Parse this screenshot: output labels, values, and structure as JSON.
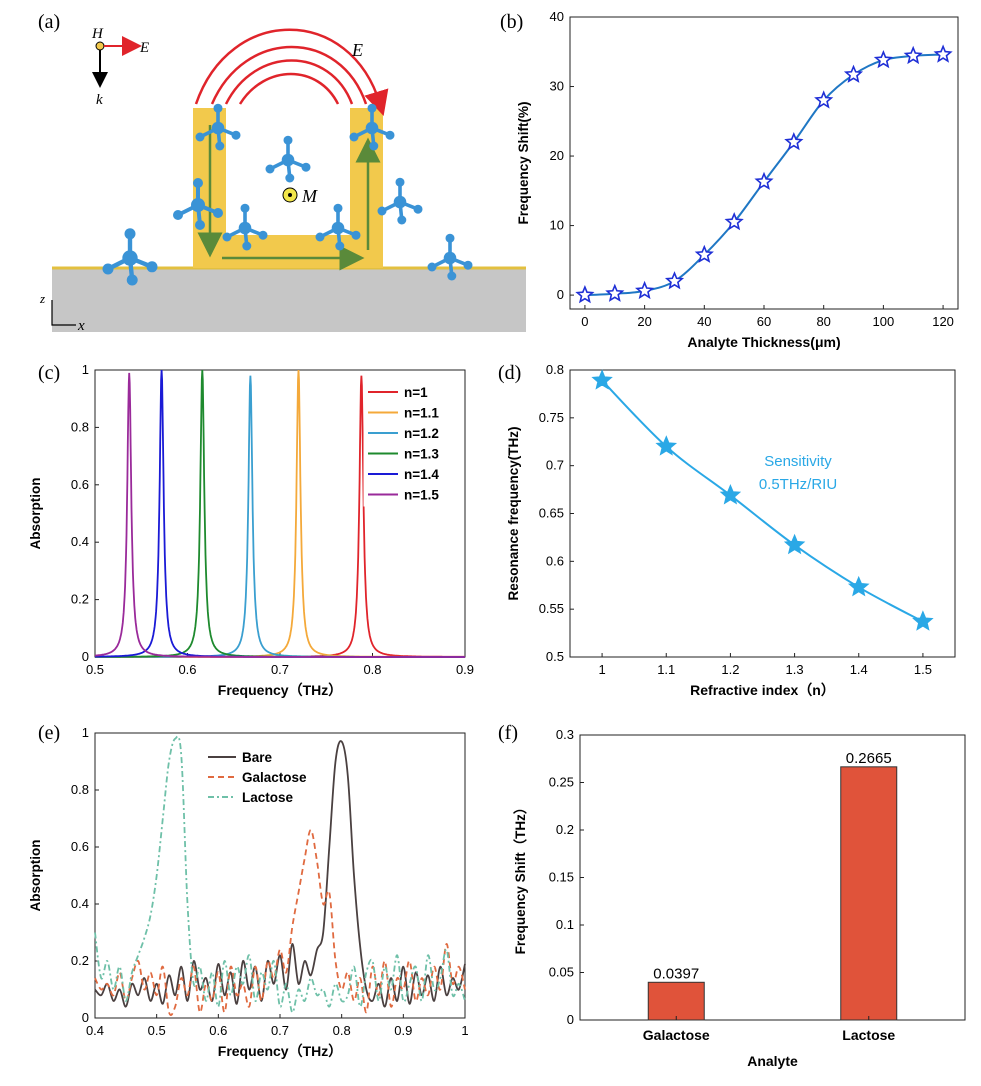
{
  "panel_labels": {
    "a": "(a)",
    "b": "(b)",
    "c": "(c)",
    "d": "(d)",
    "e": "(e)",
    "f": "(f)"
  },
  "schematic": {
    "H": "H",
    "E_axis": "E",
    "k": "k",
    "E_field": "E",
    "M": "M",
    "z": "z",
    "x": "x"
  },
  "colors": {
    "gold": "#f2c94c",
    "substrate": "#c6c6c6",
    "molecule": "#3a93d6",
    "arrow_red": "#e0242b",
    "arrow_green": "#5a8a3a"
  },
  "chart_data": [
    {
      "id": "b",
      "type": "line",
      "xlabel": "Analyte Thickness(μm)",
      "ylabel": "Frequency Shift(%)",
      "xlim": [
        -5,
        125
      ],
      "ylim": [
        -2,
        40
      ],
      "xticks": [
        0,
        20,
        40,
        60,
        80,
        100,
        120
      ],
      "yticks": [
        0,
        10,
        20,
        30,
        40
      ],
      "series": [
        {
          "x": [
            0,
            10,
            20,
            30,
            40,
            50,
            60,
            70,
            80,
            90,
            100,
            110,
            120
          ],
          "y": [
            0,
            0.2,
            0.6,
            2,
            5.8,
            10.5,
            16.3,
            22,
            28,
            31.7,
            33.8,
            34.4,
            34.6
          ],
          "color": "#1f77c4",
          "marker": "star",
          "marker_color": "#1f2fd6"
        }
      ]
    },
    {
      "id": "c",
      "type": "line",
      "xlabel": "Frequency（THz）",
      "ylabel": "Absorption",
      "xlim": [
        0.5,
        0.9
      ],
      "ylim": [
        0,
        1
      ],
      "xticks": [
        0.5,
        0.6,
        0.7,
        0.8,
        0.9
      ],
      "yticks": [
        0,
        0.2,
        0.4,
        0.6,
        0.8,
        1
      ],
      "legend": "top-right",
      "series": [
        {
          "name": "n=1",
          "color": "#e0242b",
          "peak": 0.788,
          "height": 0.98
        },
        {
          "name": "n=1.1",
          "color": "#f4a93a",
          "peak": 0.72,
          "height": 1.0
        },
        {
          "name": "n=1.2",
          "color": "#3a9fd0",
          "peak": 0.668,
          "height": 0.98
        },
        {
          "name": "n=1.3",
          "color": "#1e8a2e",
          "peak": 0.616,
          "height": 1.0
        },
        {
          "name": "n=1.4",
          "color": "#1a1ad6",
          "peak": 0.572,
          "height": 1.0
        },
        {
          "name": "n=1.5",
          "color": "#9a2a9a",
          "peak": 0.537,
          "height": 0.99
        }
      ]
    },
    {
      "id": "d",
      "type": "line",
      "xlabel": "Refractive index（n）",
      "ylabel": "Resonance frequency(THz)",
      "xlim": [
        0.95,
        1.55
      ],
      "ylim": [
        0.5,
        0.8
      ],
      "xticks": [
        1,
        1.1,
        1.2,
        1.3,
        1.4,
        1.5
      ],
      "yticks": [
        0.5,
        0.55,
        0.6,
        0.65,
        0.7,
        0.75,
        0.8
      ],
      "annotation": [
        "Sensitivity",
        "0.5THz/RIU"
      ],
      "series": [
        {
          "x": [
            1,
            1.1,
            1.2,
            1.3,
            1.4,
            1.5
          ],
          "y": [
            0.789,
            0.72,
            0.669,
            0.617,
            0.573,
            0.537
          ],
          "color": "#2aa8e6",
          "marker": "star"
        }
      ]
    },
    {
      "id": "e",
      "type": "line",
      "xlabel": "Frequency（THz）",
      "ylabel": "Absorption",
      "xlim": [
        0.4,
        1
      ],
      "ylim": [
        0,
        1
      ],
      "xticks": [
        0.4,
        0.5,
        0.6,
        0.7,
        0.8,
        0.9,
        1
      ],
      "yticks": [
        0,
        0.2,
        0.4,
        0.6,
        0.8,
        1
      ],
      "legend": "top-left",
      "series": [
        {
          "name": "Bare",
          "color": "#4a4040",
          "dash": "",
          "x": [
            0.4,
            0.41,
            0.42,
            0.43,
            0.44,
            0.45,
            0.46,
            0.47,
            0.48,
            0.49,
            0.5,
            0.51,
            0.52,
            0.53,
            0.54,
            0.55,
            0.56,
            0.57,
            0.58,
            0.59,
            0.6,
            0.61,
            0.62,
            0.63,
            0.64,
            0.65,
            0.66,
            0.67,
            0.68,
            0.69,
            0.7,
            0.71,
            0.72,
            0.73,
            0.74,
            0.75,
            0.76,
            0.77,
            0.78,
            0.79,
            0.8,
            0.81,
            0.82,
            0.83,
            0.84,
            0.85,
            0.86,
            0.87,
            0.88,
            0.89,
            0.9,
            0.91,
            0.92,
            0.93,
            0.94,
            0.95,
            0.96,
            0.97,
            0.98,
            0.99,
            1.0
          ],
          "y": [
            0.1,
            0.08,
            0.12,
            0.06,
            0.1,
            0.04,
            0.12,
            0.08,
            0.14,
            0.06,
            0.12,
            0.05,
            0.15,
            0.08,
            0.18,
            0.06,
            0.2,
            0.1,
            0.14,
            0.06,
            0.19,
            0.08,
            0.16,
            0.05,
            0.2,
            0.1,
            0.18,
            0.06,
            0.2,
            0.12,
            0.22,
            0.1,
            0.26,
            0.12,
            0.2,
            0.15,
            0.24,
            0.3,
            0.6,
            0.9,
            0.97,
            0.85,
            0.5,
            0.25,
            0.1,
            0.06,
            0.12,
            0.04,
            0.14,
            0.06,
            0.18,
            0.05,
            0.16,
            0.08,
            0.15,
            0.06,
            0.18,
            0.08,
            0.14,
            0.1,
            0.19
          ]
        },
        {
          "name": "Galactose",
          "color": "#e06a40",
          "dash": "6,4",
          "x": [
            0.4,
            0.41,
            0.42,
            0.43,
            0.44,
            0.45,
            0.46,
            0.47,
            0.48,
            0.49,
            0.5,
            0.51,
            0.52,
            0.53,
            0.54,
            0.55,
            0.56,
            0.57,
            0.58,
            0.59,
            0.6,
            0.61,
            0.62,
            0.63,
            0.64,
            0.65,
            0.66,
            0.67,
            0.68,
            0.69,
            0.7,
            0.71,
            0.72,
            0.73,
            0.74,
            0.75,
            0.76,
            0.77,
            0.78,
            0.79,
            0.8,
            0.81,
            0.82,
            0.83,
            0.84,
            0.85,
            0.86,
            0.87,
            0.88,
            0.89,
            0.9,
            0.91,
            0.92,
            0.93,
            0.94,
            0.95,
            0.96,
            0.97,
            0.98,
            0.99,
            1.0
          ],
          "y": [
            0.14,
            0.1,
            0.12,
            0.08,
            0.16,
            0.06,
            0.14,
            0.2,
            0.1,
            0.16,
            0.08,
            0.18,
            0.02,
            0.04,
            0.14,
            0.08,
            0.18,
            0.02,
            0.12,
            0.06,
            0.16,
            0.02,
            0.18,
            0.08,
            0.12,
            0.04,
            0.18,
            0.06,
            0.2,
            0.14,
            0.24,
            0.16,
            0.32,
            0.44,
            0.56,
            0.66,
            0.55,
            0.4,
            0.44,
            0.2,
            0.1,
            0.16,
            0.06,
            0.14,
            0.02,
            0.18,
            0.08,
            0.2,
            0.04,
            0.14,
            0.1,
            0.2,
            0.06,
            0.14,
            0.08,
            0.18,
            0.1,
            0.26,
            0.12,
            0.18,
            0.1
          ]
        },
        {
          "name": "Lactose",
          "color": "#6ec0a8",
          "dash": "6,3,2,3",
          "x": [
            0.4,
            0.41,
            0.42,
            0.43,
            0.44,
            0.45,
            0.46,
            0.47,
            0.48,
            0.49,
            0.5,
            0.51,
            0.52,
            0.53,
            0.54,
            0.55,
            0.56,
            0.57,
            0.58,
            0.59,
            0.6,
            0.61,
            0.62,
            0.63,
            0.64,
            0.65,
            0.66,
            0.67,
            0.68,
            0.69,
            0.7,
            0.71,
            0.72,
            0.73,
            0.74,
            0.75,
            0.76,
            0.77,
            0.78,
            0.79,
            0.8,
            0.81,
            0.82,
            0.83,
            0.84,
            0.85,
            0.86,
            0.87,
            0.88,
            0.89,
            0.9,
            0.91,
            0.92,
            0.93,
            0.94,
            0.95,
            0.96,
            0.97,
            0.98,
            0.99,
            1.0
          ],
          "y": [
            0.3,
            0.14,
            0.2,
            0.1,
            0.18,
            0.06,
            0.16,
            0.22,
            0.28,
            0.36,
            0.5,
            0.7,
            0.9,
            0.98,
            0.92,
            0.4,
            0.12,
            0.18,
            0.06,
            0.16,
            0.04,
            0.2,
            0.08,
            0.18,
            0.12,
            0.22,
            0.06,
            0.16,
            0.1,
            0.2,
            0.04,
            0.12,
            0.02,
            0.1,
            0.06,
            0.14,
            0.08,
            0.1,
            0.04,
            0.12,
            0.06,
            0.08,
            0.18,
            0.04,
            0.16,
            0.2,
            0.06,
            0.18,
            0.1,
            0.22,
            0.06,
            0.12,
            0.18,
            0.06,
            0.22,
            0.1,
            0.14,
            0.24,
            0.08,
            0.12,
            0.06
          ]
        }
      ]
    },
    {
      "id": "f",
      "type": "bar",
      "xlabel": "Analyte",
      "ylabel": "Frequency Shift（THz）",
      "ylim": [
        0,
        0.3
      ],
      "yticks": [
        0,
        0.05,
        0.1,
        0.15,
        0.2,
        0.25,
        0.3
      ],
      "categories": [
        "Galactose",
        "Lactose"
      ],
      "values": [
        0.0397,
        0.2665
      ],
      "value_labels": [
        "0.0397",
        "0.2665"
      ],
      "color": "#e0533a"
    }
  ]
}
